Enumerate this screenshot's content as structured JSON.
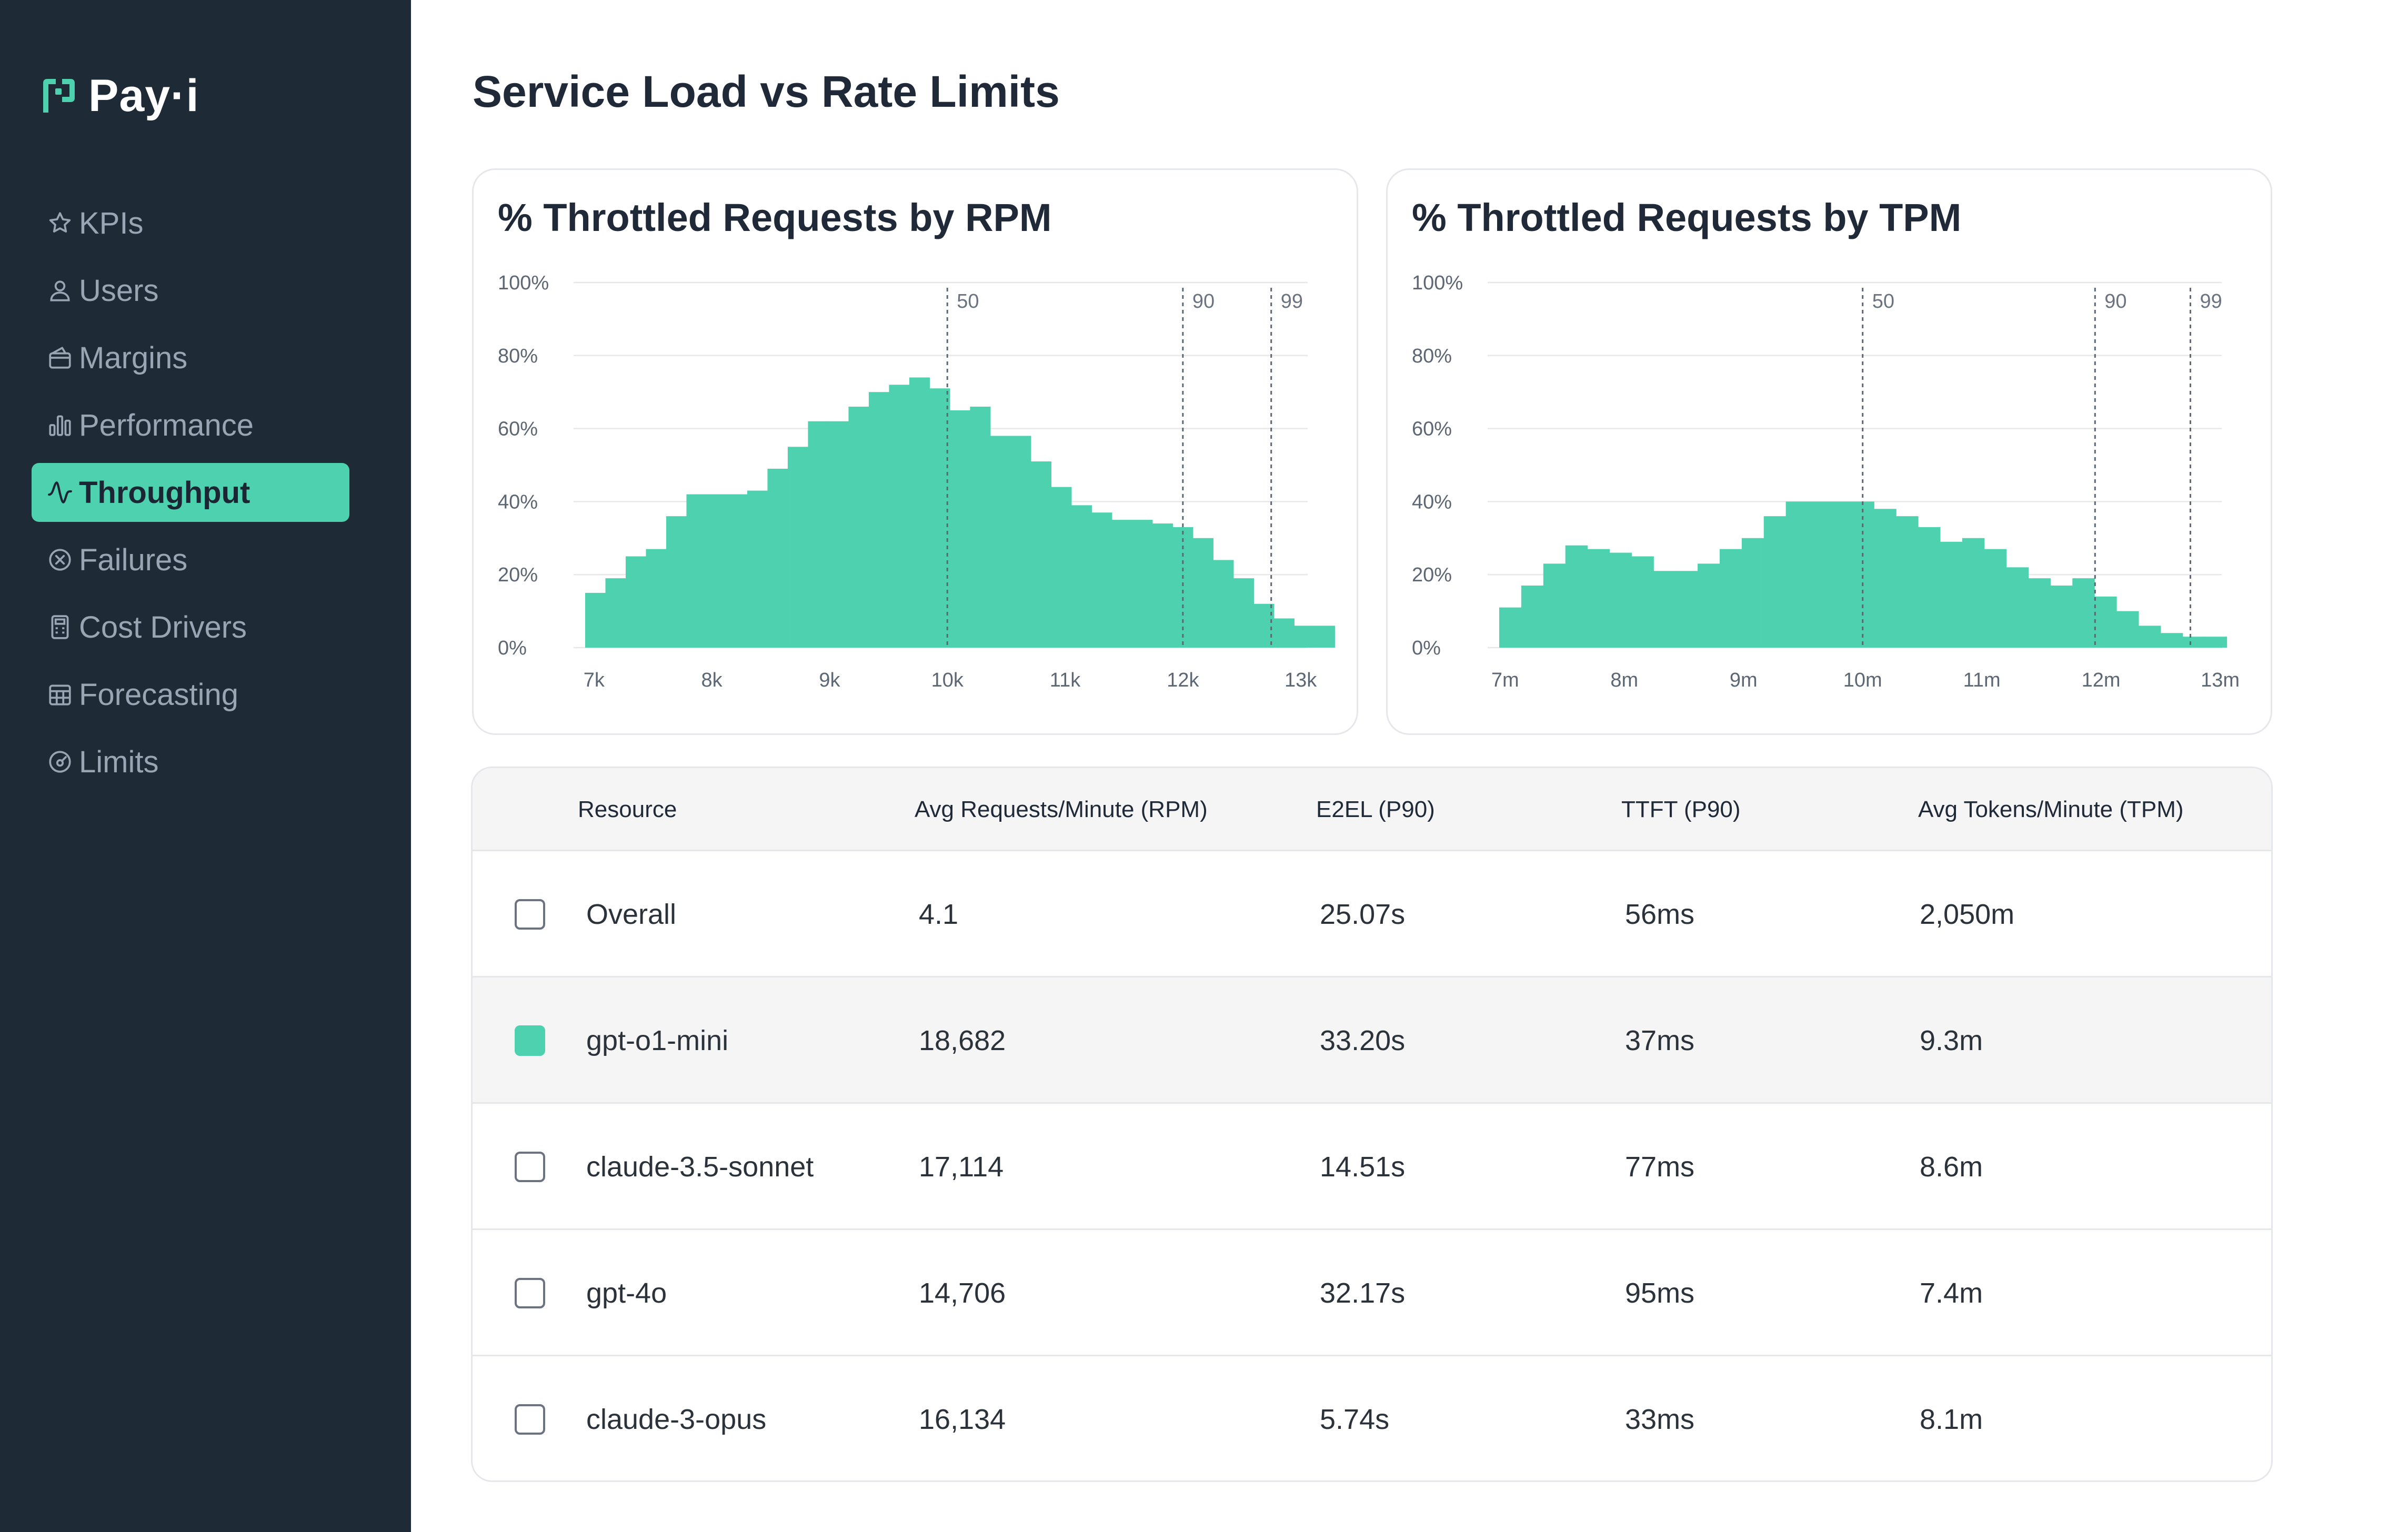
{
  "app": {
    "logo_text": "Pay·i",
    "brand_color": "#4ed1ae",
    "sidebar_color": "#1f2a37"
  },
  "sidebar": {
    "items": [
      {
        "label": "KPIs",
        "icon": "star-icon",
        "active": false
      },
      {
        "label": "Users",
        "icon": "user-icon",
        "active": false
      },
      {
        "label": "Margins",
        "icon": "wallet-icon",
        "active": false
      },
      {
        "label": "Performance",
        "icon": "bar-chart-icon",
        "active": false
      },
      {
        "label": "Throughput",
        "icon": "pulse-icon",
        "active": true
      },
      {
        "label": "Failures",
        "icon": "x-circle-icon",
        "active": false
      },
      {
        "label": "Cost Drivers",
        "icon": "calculator-icon",
        "active": false
      },
      {
        "label": "Forecasting",
        "icon": "grid-calendar-icon",
        "active": false
      },
      {
        "label": "Limits",
        "icon": "gauge-icon",
        "active": false
      }
    ]
  },
  "page": {
    "title": "Service Load vs Rate Limits"
  },
  "chart_data": [
    {
      "type": "bar",
      "title": "% Throttled Requests by RPM",
      "xlabel": "",
      "ylabel": "",
      "ylim": [
        0,
        100
      ],
      "y_ticks": [
        "0%",
        "20%",
        "40%",
        "60%",
        "80%",
        "100%"
      ],
      "x_ticks": [
        "7k",
        "8k",
        "9k",
        "10k",
        "11k",
        "12k",
        "13k"
      ],
      "x_tick_values": [
        7000,
        8000,
        9000,
        10000,
        11000,
        12000,
        13000
      ],
      "xlim": [
        6925,
        13350
      ],
      "bin_width": 172,
      "percentiles": [
        {
          "label": "50",
          "x": 10000
        },
        {
          "label": "90",
          "x": 12000
        },
        {
          "label": "99",
          "x": 12750
        }
      ],
      "x": [
        6925,
        7097,
        7269,
        7441,
        7613,
        7785,
        7957,
        8129,
        8301,
        8473,
        8645,
        8817,
        8989,
        9161,
        9333,
        9505,
        9677,
        9849,
        10021,
        10193,
        10365,
        10537,
        10709,
        10881,
        11053,
        11225,
        11397,
        11569,
        11741,
        11913,
        12085,
        12257,
        12429,
        12601,
        12773,
        12945,
        13117
      ],
      "values": [
        15,
        19,
        25,
        27,
        36,
        42,
        42,
        42,
        43,
        49,
        55,
        62,
        62,
        66,
        70,
        72,
        74,
        71,
        65,
        66,
        58,
        58,
        51,
        44,
        39,
        37,
        35,
        35,
        34,
        33,
        30,
        24,
        19,
        12,
        8,
        6,
        6
      ]
    },
    {
      "type": "bar",
      "title": "% Throttled Requests by TPM",
      "xlabel": "",
      "ylabel": "",
      "ylim": [
        0,
        100
      ],
      "y_ticks": [
        "0%",
        "20%",
        "40%",
        "60%",
        "80%",
        "100%"
      ],
      "x_ticks": [
        "7m",
        "8m",
        "9m",
        "10m",
        "11m",
        "12m",
        "13m"
      ],
      "x_tick_values": [
        7,
        8,
        9,
        10,
        11,
        12,
        13
      ],
      "xlim": [
        6.95,
        13.3
      ],
      "bin_width": 0.185,
      "percentiles": [
        {
          "label": "50",
          "x": 10.0
        },
        {
          "label": "90",
          "x": 11.95
        },
        {
          "label": "99",
          "x": 12.75
        }
      ],
      "x": [
        6.95,
        7.135,
        7.32,
        7.505,
        7.69,
        7.875,
        8.06,
        8.245,
        8.43,
        8.615,
        8.8,
        8.985,
        9.17,
        9.355,
        9.54,
        9.725,
        9.91,
        10.095,
        10.28,
        10.465,
        10.65,
        10.835,
        11.02,
        11.205,
        11.39,
        11.575,
        11.76,
        11.945,
        12.13,
        12.315,
        12.5,
        12.685,
        12.87
      ],
      "values": [
        11,
        17,
        23,
        28,
        27,
        26,
        25,
        21,
        21,
        23,
        27,
        30,
        36,
        40,
        40,
        40,
        40,
        38,
        36,
        33,
        29,
        30,
        27,
        22,
        19,
        17,
        19,
        14,
        10,
        6,
        4,
        3,
        3
      ]
    }
  ],
  "table": {
    "headers": [
      "Resource",
      "Avg Requests/Minute (RPM)",
      "E2EL (P90)",
      "TTFT (P90)",
      "Avg Tokens/Minute (TPM)"
    ],
    "rows": [
      {
        "resource": "Overall",
        "rpm": "4.1",
        "e2el": "25.07s",
        "ttft": "56ms",
        "tpm": "2,050m",
        "checked": false
      },
      {
        "resource": "gpt-o1-mini",
        "rpm": "18,682",
        "e2el": "33.20s",
        "ttft": "37ms",
        "tpm": "9.3m",
        "checked": true
      },
      {
        "resource": "claude-3.5-sonnet",
        "rpm": "17,114",
        "e2el": "14.51s",
        "ttft": "77ms",
        "tpm": "8.6m",
        "checked": false
      },
      {
        "resource": "gpt-4o",
        "rpm": "14,706",
        "e2el": "32.17s",
        "ttft": "95ms",
        "tpm": "7.4m",
        "checked": false
      },
      {
        "resource": "claude-3-opus",
        "rpm": "16,134",
        "e2el": "5.74s",
        "ttft": "33ms",
        "tpm": "8.1m",
        "checked": false
      }
    ]
  }
}
